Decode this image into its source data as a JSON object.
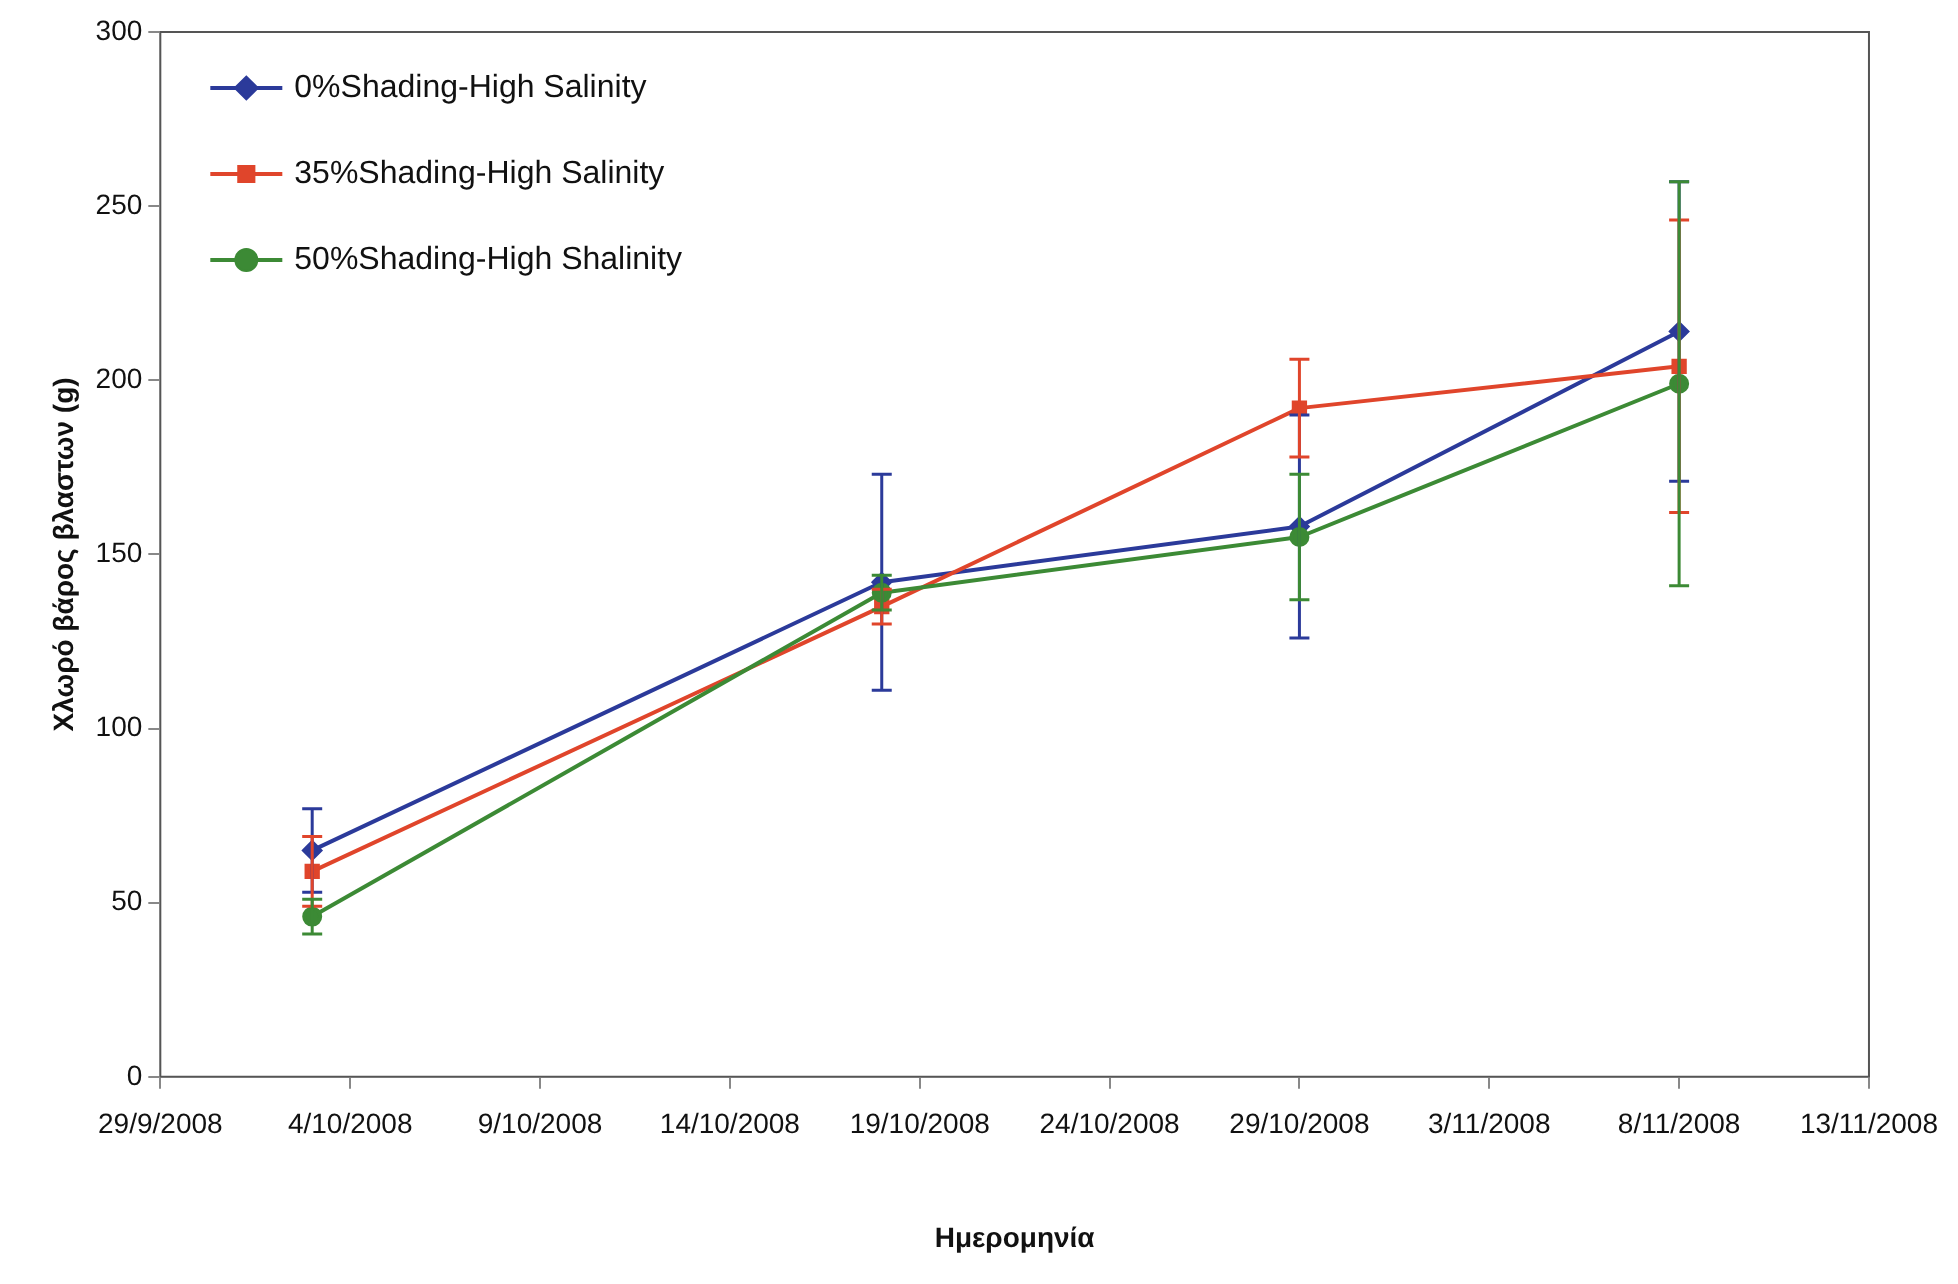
{
  "chart_data": {
    "type": "line",
    "xlabel": "Ημερομηνία",
    "ylabel": "Χλωρό βάρος βλαστων (g)",
    "x": [
      "2008-10-03",
      "2008-10-18",
      "2008-10-29",
      "2008-11-08"
    ],
    "series": [
      {
        "name": "0%Shading-High Salinity",
        "color": "#2b3a9a",
        "marker": "diamond",
        "values": [
          65,
          142,
          158,
          214
        ],
        "errors": [
          12,
          31,
          32,
          43
        ]
      },
      {
        "name": "35%Shading-High Salinity",
        "color": "#e0452b",
        "marker": "square",
        "values": [
          59,
          135,
          192,
          204
        ],
        "errors": [
          10,
          5,
          14,
          42
        ]
      },
      {
        "name": "50%Shading-High Shalinity",
        "color": "#3c8a35",
        "marker": "circle",
        "values": [
          46,
          139,
          155,
          199
        ],
        "errors": [
          5,
          5,
          18,
          58
        ]
      }
    ],
    "xlim": [
      "2008-09-29",
      "2008-11-13"
    ],
    "xticks": [
      {
        "value": "2008-09-29",
        "label": "29/9/2008"
      },
      {
        "value": "2008-10-04",
        "label": "4/10/2008"
      },
      {
        "value": "2008-10-09",
        "label": "9/10/2008"
      },
      {
        "value": "2008-10-14",
        "label": "14/10/2008"
      },
      {
        "value": "2008-10-19",
        "label": "19/10/2008"
      },
      {
        "value": "2008-10-24",
        "label": "24/10/2008"
      },
      {
        "value": "2008-10-29",
        "label": "29/10/2008"
      },
      {
        "value": "2008-11-03",
        "label": "3/11/2008"
      },
      {
        "value": "2008-11-08",
        "label": "8/11/2008"
      },
      {
        "value": "2008-11-13",
        "label": "13/11/2008"
      }
    ],
    "ylim": [
      0,
      300
    ],
    "yticks": [
      0,
      50,
      100,
      150,
      200,
      250,
      300
    ],
    "grid": false,
    "legend": "top left",
    "line_style": "solid"
  }
}
